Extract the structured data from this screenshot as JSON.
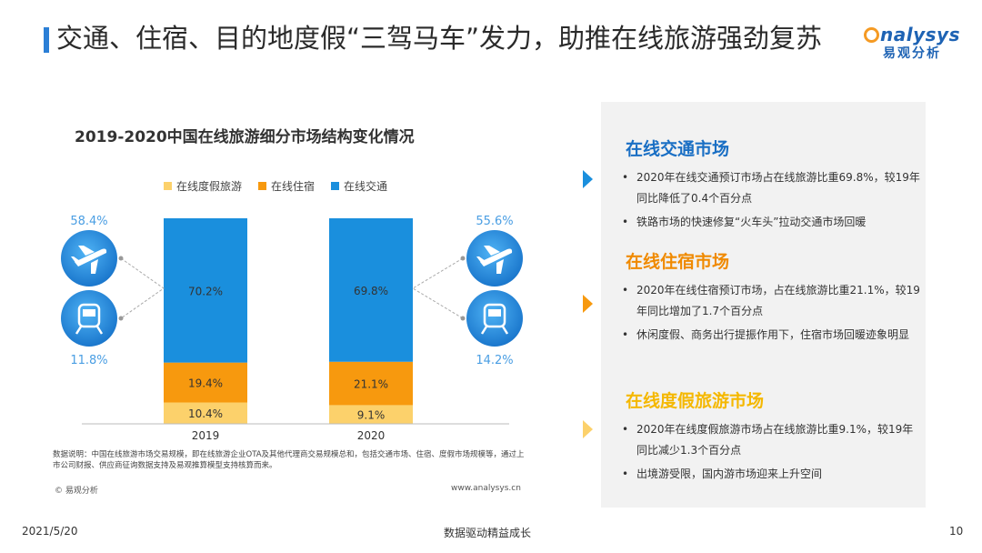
{
  "header": {
    "title": "交通、住宿、目的地度假“三驾马车”发力，助推在线旅游强劲复苏",
    "logo_en": "nalysys",
    "logo_cn": "易观分析"
  },
  "chart_data": {
    "type": "bar",
    "stacked": true,
    "title": "2019-2020中国在线旅游细分市场结构变化情况",
    "categories": [
      "2019",
      "2020"
    ],
    "series": [
      {
        "name": "在线度假旅游",
        "color": "#fcd16b",
        "values": [
          10.4,
          9.1
        ],
        "labels": [
          "10.4%",
          "9.1%"
        ]
      },
      {
        "name": "在线住宿",
        "color": "#f7990e",
        "values": [
          19.4,
          21.1
        ],
        "labels": [
          "19.4%",
          "21.1%"
        ]
      },
      {
        "name": "在线交通",
        "color": "#1a8fdd",
        "values": [
          70.2,
          69.8
        ],
        "labels": [
          "70.2%",
          "69.8%"
        ]
      }
    ],
    "legend_position": "top",
    "side_breakdown": [
      {
        "category": "2019",
        "side": "left",
        "plane_label": "58.4%",
        "train_label": "11.8%"
      },
      {
        "category": "2020",
        "side": "right",
        "plane_label": "55.6%",
        "train_label": "14.2%"
      }
    ],
    "note": "数据说明：中国在线旅游市场交易规模，即在线旅游企业OTA及其他代理商交易规模总和，包括交通市场、住宿、度假市场规模等，通过上市公司财报、供应商征询数据支持及易观推算模型支持核算而来。",
    "source": "© 易观分析",
    "website": "www.analysys.cn"
  },
  "panel": {
    "sections": [
      {
        "title": "在线交通市场",
        "color": "#1a6fc4",
        "arrow_color": "#1a8fdd",
        "bullets": [
          "2020年在线交通预订市场占在线旅游比重69.8%，较19年同比降低了0.4个百分点",
          "铁路市场的快速修复“火车头”拉动交通市场回暖"
        ]
      },
      {
        "title": "在线住宿市场",
        "color": "#f08a00",
        "arrow_color": "#f7990e",
        "bullets": [
          "2020年在线住宿预订市场，占在线旅游比重21.1%，较19年同比增加了1.7个百分点",
          "休闲度假、商务出行提振作用下，住宿市场回暖迹象明显"
        ]
      },
      {
        "title": "在线度假旅游市场",
        "color": "#f5b800",
        "arrow_color": "#fcd16b",
        "bullets": [
          "2020年在线度假旅游市场占在线旅游比重9.1%，较19年同比减少1.3个百分点",
          "出境游受限，国内游市场迎来上升空间"
        ]
      }
    ]
  },
  "footer": {
    "date": "2021/5/20",
    "slogan": "数据驱动精益成长",
    "page": "10"
  }
}
